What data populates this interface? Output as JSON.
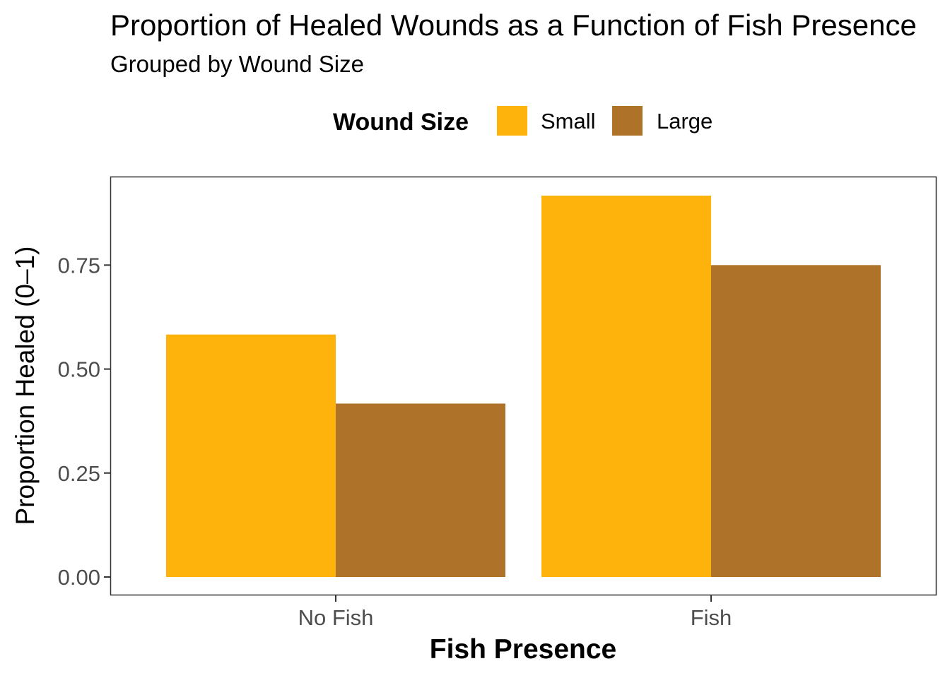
{
  "chart_data": {
    "type": "bar",
    "title": "Proportion of Healed Wounds as a Function of Fish Presence",
    "subtitle": "Grouped by Wound Size",
    "xlabel": "Fish Presence",
    "ylabel": "Proportion Healed (0–1)",
    "categories": [
      "No Fish",
      "Fish"
    ],
    "series": [
      {
        "name": "Small",
        "color": "#FDB30B",
        "values": [
          0.583,
          0.917
        ]
      },
      {
        "name": "Large",
        "color": "#AF7229",
        "values": [
          0.417,
          0.75
        ]
      }
    ],
    "ylim": [
      0,
      0.917
    ],
    "yticks": [
      0,
      0.25,
      0.5,
      0.75
    ],
    "ytick_labels": [
      "0.00",
      "0.25",
      "0.50",
      "0.75"
    ],
    "legend": {
      "title": "Wound Size",
      "position": "top"
    },
    "grid": false
  }
}
